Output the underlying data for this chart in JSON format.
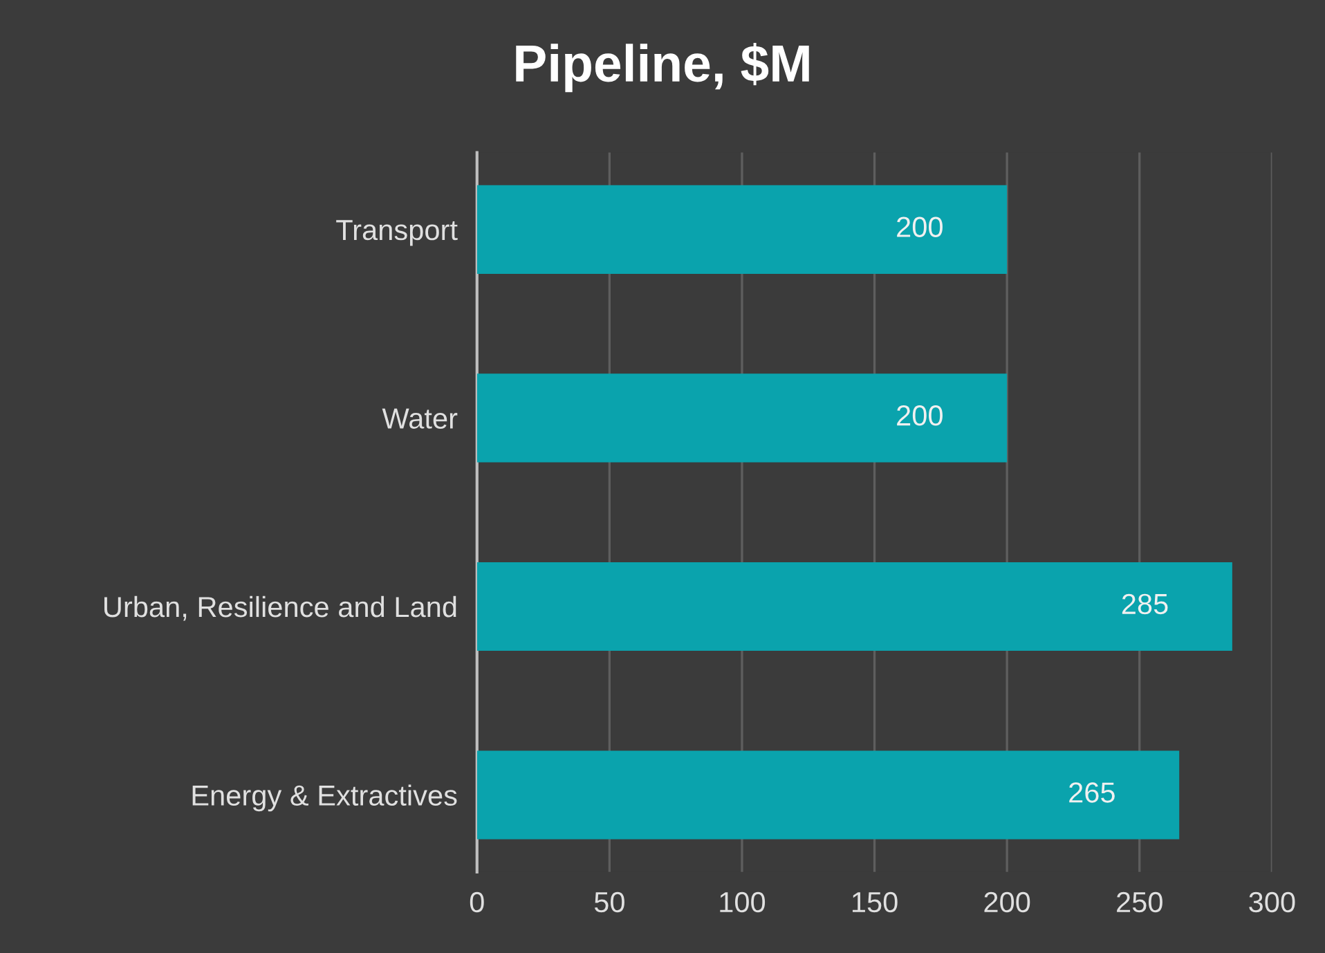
{
  "chart_data": {
    "type": "bar",
    "orientation": "horizontal",
    "title": "Pipeline, $M",
    "categories": [
      "Transport",
      "Water",
      "Urban, Resilience and Land",
      "Energy & Extractives"
    ],
    "values": [
      200,
      200,
      285,
      265
    ],
    "color": "#0aa3ad",
    "xlim": [
      0,
      300
    ],
    "xticks": [
      0,
      50,
      100,
      150,
      200,
      250,
      300
    ],
    "grid": "x",
    "data_labels": true
  }
}
